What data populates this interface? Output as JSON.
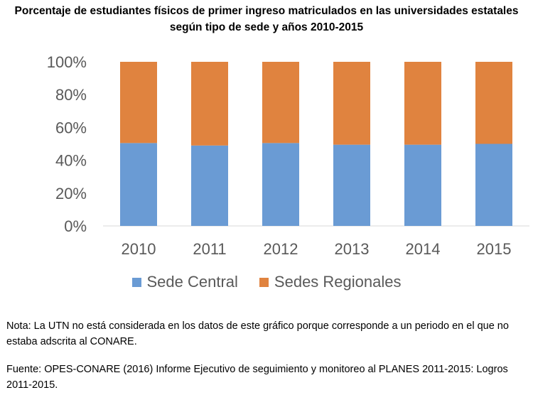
{
  "title_line1": "Porcentaje de estudiantes físicos de primer ingreso matriculados en las universidades estatales",
  "title_line2": "según tipo de sede y años 2010-2015",
  "chart_data": {
    "type": "bar",
    "stacked": true,
    "percent": true,
    "categories": [
      "2010",
      "2011",
      "2012",
      "2013",
      "2014",
      "2015"
    ],
    "series": [
      {
        "name": "Sede Central",
        "color": "#6a9bd4",
        "values": [
          50.5,
          49,
          50.5,
          49.5,
          49.5,
          50
        ]
      },
      {
        "name": "Sedes Regionales",
        "color": "#e0833f",
        "values": [
          49.5,
          51,
          49.5,
          50.5,
          50.5,
          50
        ]
      }
    ],
    "yticks": [
      "0%",
      "20%",
      "40%",
      "60%",
      "80%",
      "100%"
    ],
    "ylim": [
      0,
      100
    ],
    "grid": false,
    "legend_position": "bottom"
  },
  "note": "Nota: La UTN no está considerada en los datos de este gráfico porque corresponde a un periodo en el que  no estaba adscrita al CONARE.",
  "source": "Fuente: OPES-CONARE (2016) Informe Ejecutivo de seguimiento y monitoreo al PLANES 2011-2015: Logros 2011-2015."
}
